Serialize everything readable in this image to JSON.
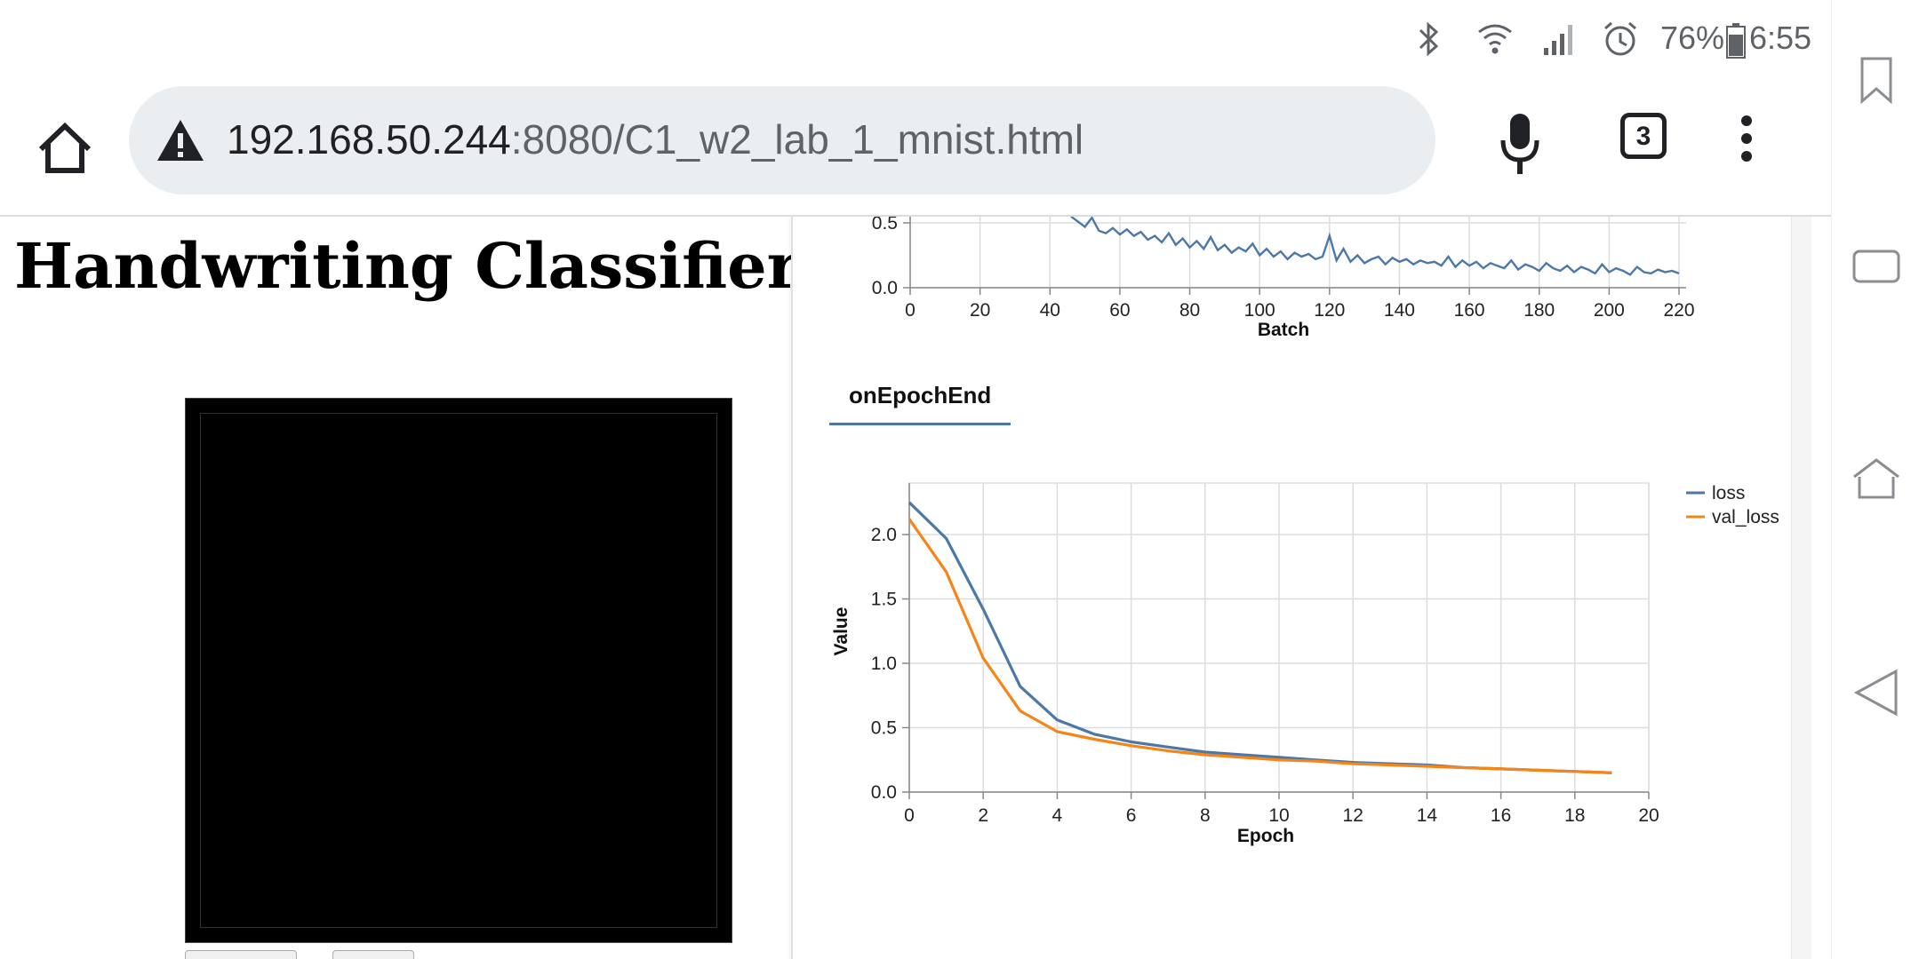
{
  "status_bar": {
    "battery_percent": "76%",
    "time": "6:55",
    "icons": [
      "bluetooth-icon",
      "wifi-icon",
      "signal-icon",
      "alarm-icon",
      "battery-icon"
    ]
  },
  "toolbar": {
    "url_host": "192.168.50.244",
    "url_path": ":8080/C1_w2_lab_1_mnist.html",
    "tab_count": "3"
  },
  "page": {
    "title": "Handwriting Classifier!"
  },
  "visor": {
    "tab_label": "onEpochEnd"
  },
  "colors": {
    "loss": "#4c78a8",
    "val_loss": "#f58518",
    "gridline": "#dddddd"
  },
  "chart_data": [
    {
      "type": "line",
      "xlabel": "Batch",
      "ylabel": "",
      "xlim": [
        0,
        220
      ],
      "ylim": [
        0,
        0.5
      ],
      "x_ticks": [
        "0",
        "20",
        "40",
        "60",
        "80",
        "100",
        "120",
        "140",
        "160",
        "180",
        "200",
        "220"
      ],
      "y_ticks": [
        "0.0",
        "0.5"
      ],
      "grid": true,
      "series": [
        {
          "x": [
            46,
            48,
            50,
            52,
            54,
            56,
            58,
            60,
            62,
            64,
            66,
            68,
            70,
            72,
            74,
            76,
            78,
            80,
            82,
            84,
            86,
            88,
            90,
            92,
            94,
            96,
            98,
            100,
            102,
            104,
            106,
            108,
            110,
            112,
            114,
            116,
            118,
            120,
            122,
            124,
            126,
            128,
            130,
            132,
            134,
            136,
            138,
            140,
            142,
            144,
            146,
            148,
            150,
            152,
            154,
            156,
            158,
            160,
            162,
            164,
            166,
            168,
            170,
            172,
            174,
            176,
            178,
            180,
            182,
            184,
            186,
            188,
            190,
            192,
            194,
            196,
            198,
            200,
            202,
            204,
            206,
            208,
            210,
            212,
            214,
            216,
            218,
            220
          ],
          "values": [
            0.55,
            0.51,
            0.47,
            0.54,
            0.44,
            0.42,
            0.46,
            0.41,
            0.45,
            0.4,
            0.43,
            0.37,
            0.4,
            0.35,
            0.42,
            0.33,
            0.38,
            0.31,
            0.36,
            0.3,
            0.39,
            0.29,
            0.33,
            0.27,
            0.31,
            0.28,
            0.34,
            0.25,
            0.3,
            0.24,
            0.28,
            0.22,
            0.27,
            0.24,
            0.26,
            0.22,
            0.24,
            0.4,
            0.21,
            0.3,
            0.2,
            0.25,
            0.19,
            0.22,
            0.24,
            0.18,
            0.23,
            0.2,
            0.22,
            0.18,
            0.21,
            0.19,
            0.2,
            0.17,
            0.24,
            0.16,
            0.21,
            0.17,
            0.2,
            0.15,
            0.19,
            0.17,
            0.15,
            0.21,
            0.14,
            0.18,
            0.16,
            0.13,
            0.19,
            0.15,
            0.13,
            0.17,
            0.12,
            0.16,
            0.14,
            0.11,
            0.18,
            0.12,
            0.15,
            0.13,
            0.1,
            0.16,
            0.12,
            0.11,
            0.14,
            0.12,
            0.13,
            0.11
          ]
        }
      ]
    },
    {
      "type": "line",
      "xlabel": "Epoch",
      "ylabel": "Value",
      "xlim": [
        0,
        20
      ],
      "ylim": [
        0,
        2.4
      ],
      "x_ticks": [
        "0",
        "2",
        "4",
        "6",
        "8",
        "10",
        "12",
        "14",
        "16",
        "18",
        "20"
      ],
      "y_ticks": [
        "0.0",
        "0.5",
        "1.0",
        "1.5",
        "2.0"
      ],
      "grid": true,
      "legend_position": "top-right",
      "series": [
        {
          "name": "loss",
          "x": [
            0,
            1,
            2,
            3,
            4,
            5,
            6,
            7,
            8,
            9,
            10,
            11,
            12,
            13,
            14,
            15,
            16,
            17,
            18,
            19
          ],
          "values": [
            2.25,
            1.97,
            1.42,
            0.82,
            0.56,
            0.45,
            0.39,
            0.35,
            0.31,
            0.29,
            0.27,
            0.25,
            0.23,
            0.22,
            0.21,
            0.19,
            0.18,
            0.17,
            0.16,
            0.15
          ]
        },
        {
          "name": "val_loss",
          "x": [
            0,
            1,
            2,
            3,
            4,
            5,
            6,
            7,
            8,
            9,
            10,
            11,
            12,
            13,
            14,
            15,
            16,
            17,
            18,
            19
          ],
          "values": [
            2.12,
            1.71,
            1.04,
            0.63,
            0.47,
            0.41,
            0.36,
            0.32,
            0.29,
            0.27,
            0.25,
            0.24,
            0.22,
            0.21,
            0.2,
            0.19,
            0.18,
            0.17,
            0.16,
            0.15
          ]
        }
      ]
    }
  ]
}
